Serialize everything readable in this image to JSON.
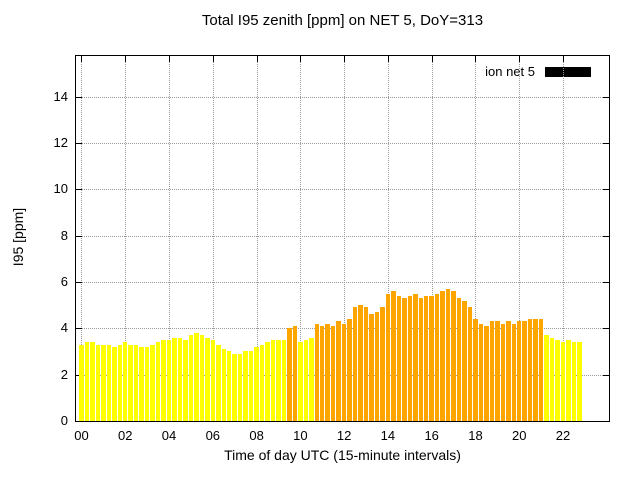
{
  "chart_data": {
    "type": "bar",
    "title": "Total I95 zenith [ppm] on NET 5, DoY=313",
    "xlabel": "Time of day UTC (15-minute intervals)",
    "ylabel": "I95 [ppm]",
    "series_name": "ion net 5",
    "legend_swatch_color": "#000000",
    "xlim": [
      -0.25,
      24.1
    ],
    "ylim": [
      0,
      15.75
    ],
    "grid": true,
    "legend_position": "top-right-inside",
    "xticks": [
      0,
      2,
      4,
      6,
      8,
      10,
      12,
      14,
      16,
      18,
      20,
      22
    ],
    "xtick_labels": [
      "00",
      "02",
      "04",
      "06",
      "08",
      "10",
      "12",
      "14",
      "16",
      "18",
      "20",
      "22"
    ],
    "yticks": [
      0,
      2,
      4,
      6,
      8,
      10,
      12,
      14
    ],
    "interval_minutes": 15,
    "start_hour": 0,
    "colors": {
      "yellow": "#ffff00",
      "orange": "#ffa500"
    },
    "orange_segments": [
      [
        38,
        39
      ],
      [
        43,
        84
      ]
    ],
    "values": [
      3.3,
      3.4,
      3.4,
      3.3,
      3.3,
      3.3,
      3.2,
      3.3,
      3.4,
      3.3,
      3.3,
      3.2,
      3.2,
      3.3,
      3.4,
      3.5,
      3.5,
      3.6,
      3.6,
      3.5,
      3.7,
      3.8,
      3.7,
      3.6,
      3.5,
      3.3,
      3.1,
      3.0,
      2.9,
      2.9,
      3.0,
      3.0,
      3.2,
      3.3,
      3.4,
      3.5,
      3.5,
      3.5,
      4.0,
      4.1,
      3.4,
      3.5,
      3.6,
      4.2,
      4.1,
      4.2,
      4.1,
      4.3,
      4.2,
      4.4,
      4.9,
      5.0,
      4.9,
      4.6,
      4.7,
      4.9,
      5.5,
      5.6,
      5.4,
      5.3,
      5.4,
      5.5,
      5.3,
      5.4,
      5.4,
      5.5,
      5.6,
      5.7,
      5.6,
      5.3,
      5.2,
      4.9,
      4.4,
      4.2,
      4.1,
      4.3,
      4.3,
      4.2,
      4.3,
      4.2,
      4.3,
      4.3,
      4.4,
      4.4,
      4.4,
      3.7,
      3.6,
      3.5,
      3.4,
      3.5,
      3.4,
      3.4
    ]
  }
}
